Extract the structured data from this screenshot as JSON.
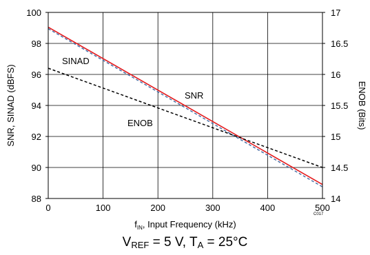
{
  "chart_data": {
    "type": "line",
    "x": [
      0,
      500
    ],
    "series": [
      {
        "name": "SNR",
        "axis": "left",
        "values": [
          99.05,
          88.9
        ],
        "color": "#e41a1c",
        "style": "solid"
      },
      {
        "name": "SINAD",
        "axis": "left",
        "values": [
          98.95,
          88.75
        ],
        "color": "#4a6fa5",
        "style": "dashed"
      },
      {
        "name": "ENOB",
        "axis": "right",
        "values": [
          16.1,
          14.5
        ],
        "color": "#000000",
        "style": "dashed"
      }
    ],
    "xlim": [
      0,
      500
    ],
    "ylim_left": [
      88,
      100
    ],
    "ylim_right": [
      14,
      17
    ],
    "x_ticks": [
      0,
      100,
      200,
      300,
      400,
      500
    ],
    "left_ticks": [
      88,
      90,
      92,
      94,
      96,
      98,
      100
    ],
    "right_ticks": [
      "14",
      "14.5",
      "15",
      "15.5",
      "16",
      "16.5",
      "17"
    ],
    "xlabel_main": "f",
    "xlabel_sub": "IN",
    "xlabel_rest": ", Input Frequency (kHz)",
    "ylabel_left": "SNR, SINAD (dBFS)",
    "ylabel_right": "ENOB (Bits)",
    "annotations": {
      "sinad": "SINAD",
      "snr": "SNR",
      "enob": "ENOB"
    },
    "code_label": "C017",
    "grid": true
  },
  "caption": {
    "v": "V",
    "v_sub": "REF",
    "mid": " = 5 V, T",
    "t_sub": "A",
    "end": " = 25°C"
  }
}
